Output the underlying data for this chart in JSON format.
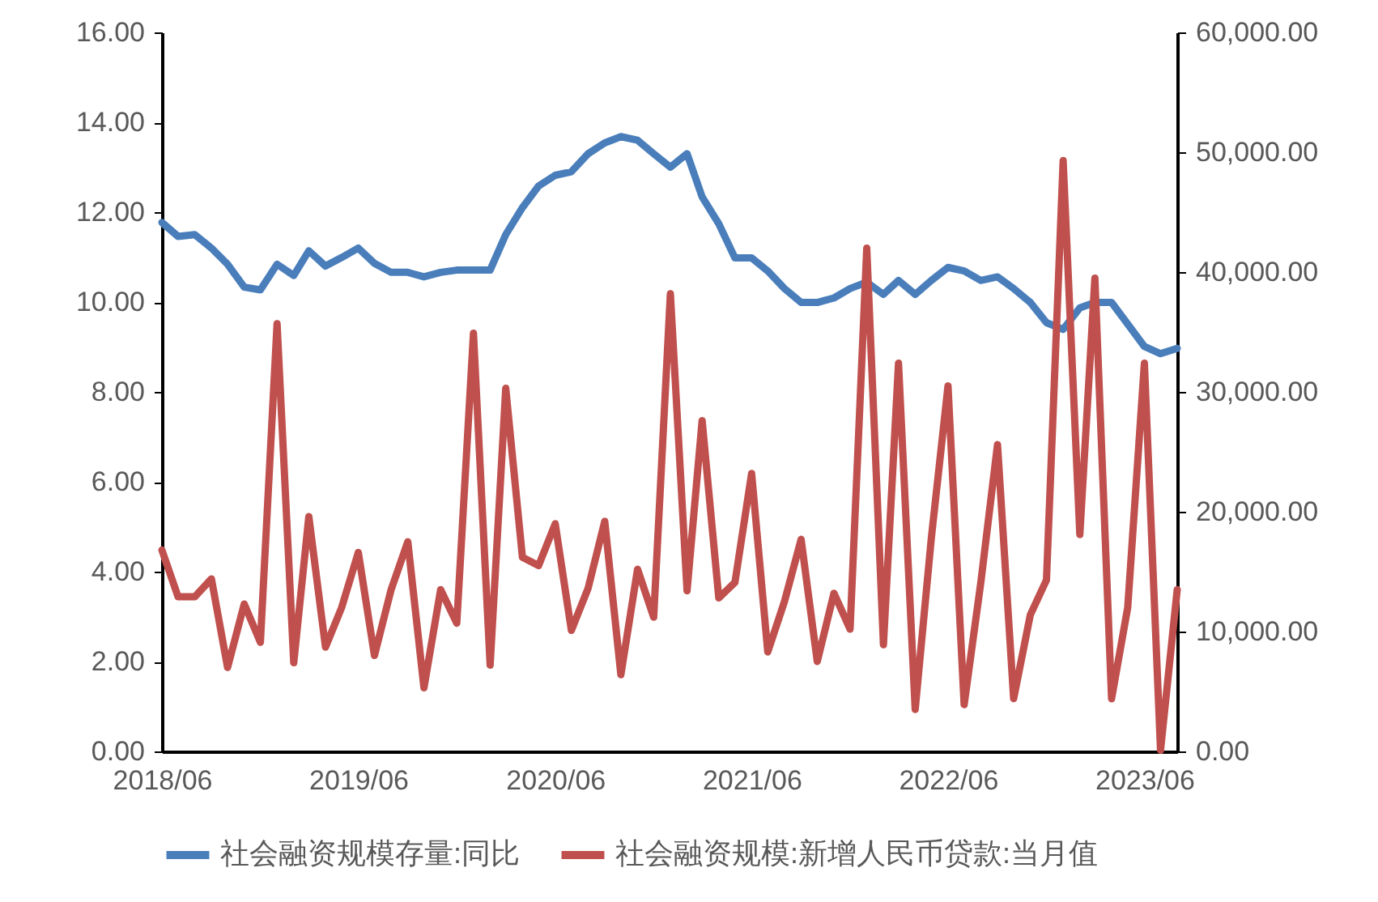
{
  "chart_data": {
    "type": "line",
    "x": [
      "2018-06",
      "2018-07",
      "2018-08",
      "2018-09",
      "2018-10",
      "2018-11",
      "2018-12",
      "2019-01",
      "2019-02",
      "2019-03",
      "2019-04",
      "2019-05",
      "2019-06",
      "2019-07",
      "2019-08",
      "2019-09",
      "2019-10",
      "2019-11",
      "2019-12",
      "2020-01",
      "2020-02",
      "2020-03",
      "2020-04",
      "2020-05",
      "2020-06",
      "2020-07",
      "2020-08",
      "2020-09",
      "2020-10",
      "2020-11",
      "2020-12",
      "2021-01",
      "2021-02",
      "2021-03",
      "2021-04",
      "2021-05",
      "2021-06",
      "2021-07",
      "2021-08",
      "2021-09",
      "2021-10",
      "2021-11",
      "2021-12",
      "2022-01",
      "2022-02",
      "2022-03",
      "2022-04",
      "2022-05",
      "2022-06",
      "2022-07",
      "2022-08",
      "2022-09",
      "2022-10",
      "2022-11",
      "2022-12",
      "2023-01",
      "2023-02",
      "2023-03",
      "2023-04",
      "2023-05",
      "2023-06",
      "2023-07",
      "2023-08"
    ],
    "series": [
      {
        "name": "社会融资规模存量:同比",
        "color": "#4a7ebb",
        "values": [
          11.77,
          11.46,
          11.5,
          11.2,
          10.84,
          10.33,
          10.27,
          10.84,
          10.59,
          11.14,
          10.8,
          10.99,
          11.2,
          10.86,
          10.66,
          10.66,
          10.56,
          10.66,
          10.71,
          10.71,
          10.71,
          11.5,
          12.1,
          12.58,
          12.82,
          12.9,
          13.3,
          13.54,
          13.68,
          13.6,
          13.3,
          13.0,
          13.3,
          12.34,
          11.74,
          10.98,
          10.98,
          10.69,
          10.3,
          9.99,
          9.99,
          10.09,
          10.3,
          10.44,
          10.17,
          10.48,
          10.17,
          10.48,
          10.77,
          10.69,
          10.48,
          10.56,
          10.3,
          9.99,
          9.54,
          9.39,
          9.87,
          9.99,
          9.99,
          9.51,
          9.01,
          8.85,
          8.97
        ]
      },
      {
        "name": "社会融资规模:新增人民币贷款:当月值",
        "color": "#c0504d",
        "axis": "y2",
        "values": [
          16800,
          12900,
          12900,
          14400,
          7000,
          12300,
          9100,
          35700,
          7400,
          19600,
          8700,
          12000,
          16600,
          8000,
          13500,
          17500,
          5300,
          13500,
          10700,
          34900,
          7200,
          30300,
          16200,
          15500,
          19000,
          10100,
          13600,
          19200,
          6400,
          15200,
          11200,
          38200,
          13400,
          27600,
          12800,
          14100,
          23200,
          8300,
          12500,
          17700,
          7500,
          13200,
          10200,
          42000,
          8900,
          32400,
          3500,
          17800,
          30500,
          3900,
          14100,
          25600,
          4400,
          11400,
          14300,
          49300,
          18100,
          39500,
          4400,
          12000,
          32400,
          100,
          13500
        ]
      }
    ],
    "xlim": [
      "2018-06",
      "2023-08"
    ],
    "xticks": [
      {
        "value": "2018-06",
        "label": "2018/06"
      },
      {
        "value": "2019-06",
        "label": "2019/06"
      },
      {
        "value": "2020-06",
        "label": "2020/06"
      },
      {
        "value": "2021-06",
        "label": "2021/06"
      },
      {
        "value": "2022-06",
        "label": "2022/06"
      },
      {
        "value": "2023-06",
        "label": "2023/06"
      }
    ],
    "ylim": [
      0,
      16
    ],
    "yticks": [
      {
        "value": 0,
        "label": "0.00"
      },
      {
        "value": 2,
        "label": "2.00"
      },
      {
        "value": 4,
        "label": "4.00"
      },
      {
        "value": 6,
        "label": "6.00"
      },
      {
        "value": 8,
        "label": "8.00"
      },
      {
        "value": 10,
        "label": "10.00"
      },
      {
        "value": 12,
        "label": "12.00"
      },
      {
        "value": 14,
        "label": "14.00"
      },
      {
        "value": 16,
        "label": "16.00"
      }
    ],
    "y2lim": [
      0,
      60000
    ],
    "y2ticks": [
      {
        "value": 0,
        "label": "0.00"
      },
      {
        "value": 10000,
        "label": "10,000.00"
      },
      {
        "value": 20000,
        "label": "20,000.00"
      },
      {
        "value": 30000,
        "label": "30,000.00"
      },
      {
        "value": 40000,
        "label": "40,000.00"
      },
      {
        "value": 50000,
        "label": "50,000.00"
      },
      {
        "value": 60000,
        "label": "60,000.00"
      }
    ],
    "grid": false,
    "legend": "bottom",
    "marker": "none",
    "line_style": "solid"
  }
}
